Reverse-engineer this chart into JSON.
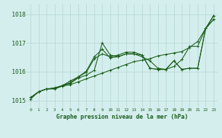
{
  "title": "Graphe pression niveau de la mer (hPa)",
  "background_color": "#d4eeed",
  "grid_color": "#b8d8d4",
  "line_color": "#1a5c1a",
  "xlim": [
    -0.5,
    23.5
  ],
  "ylim": [
    1014.75,
    1018.35
  ],
  "yticks": [
    1015,
    1016,
    1017,
    1018
  ],
  "xticks": [
    0,
    1,
    2,
    3,
    4,
    5,
    6,
    7,
    8,
    9,
    10,
    11,
    12,
    13,
    14,
    15,
    16,
    17,
    18,
    19,
    20,
    21,
    22,
    23
  ],
  "series": [
    [
      1015.05,
      1015.3,
      1015.4,
      1015.4,
      1015.5,
      1015.55,
      1015.65,
      1015.75,
      1015.85,
      1015.95,
      1016.05,
      1016.15,
      1016.25,
      1016.35,
      1016.4,
      1016.45,
      1016.55,
      1016.6,
      1016.65,
      1016.7,
      1016.85,
      1017.05,
      1017.5,
      1017.95
    ],
    [
      1015.1,
      1015.3,
      1015.4,
      1015.42,
      1015.5,
      1015.6,
      1015.78,
      1015.88,
      1016.05,
      1017.0,
      1016.58,
      1016.52,
      1016.62,
      1016.62,
      1016.52,
      1016.38,
      1016.12,
      1016.08,
      1016.18,
      1016.42,
      1016.88,
      1016.88,
      1017.5,
      1017.82
    ],
    [
      1015.1,
      1015.3,
      1015.4,
      1015.42,
      1015.52,
      1015.62,
      1015.82,
      1015.98,
      1016.45,
      1016.62,
      1016.52,
      1016.58,
      1016.68,
      1016.68,
      1016.58,
      1016.12,
      1016.08,
      1016.08,
      1016.38,
      1016.08,
      1016.12,
      1016.12,
      1017.5,
      1017.82
    ],
    [
      1015.1,
      1015.3,
      1015.4,
      1015.44,
      1015.52,
      1015.68,
      1015.82,
      1016.02,
      1016.52,
      1016.78,
      1016.48,
      1016.52,
      1016.62,
      1016.62,
      1016.58,
      1016.12,
      1016.08,
      1016.08,
      1016.38,
      1016.08,
      1016.12,
      1016.12,
      1017.5,
      1017.95
    ]
  ]
}
